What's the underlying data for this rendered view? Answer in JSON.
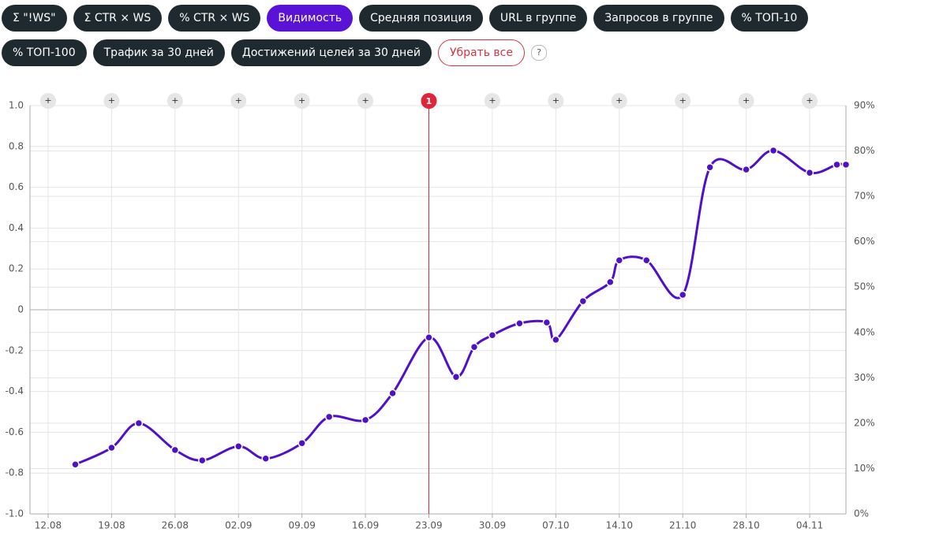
{
  "toolbar": {
    "buttons": [
      {
        "label": "Σ \"!WS\"",
        "active": false
      },
      {
        "label": "Σ CTR × WS",
        "active": false
      },
      {
        "label": "% CTR × WS",
        "active": false
      },
      {
        "label": "Видимость",
        "active": true
      },
      {
        "label": "Средняя позиция",
        "active": false
      },
      {
        "label": "URL в группе",
        "active": false
      },
      {
        "label": "Запросов в группе",
        "active": false
      },
      {
        "label": "% ТОП-10",
        "active": false
      },
      {
        "label": "% ТОП-100",
        "active": false
      },
      {
        "label": "Трафик за 30 дней",
        "active": false
      },
      {
        "label": "Достижений целей за 30 дней",
        "active": false
      }
    ],
    "clear_label": "Убрать все",
    "help_label": "?"
  },
  "chart_data": {
    "type": "line",
    "x": [
      "15.08",
      "19.08",
      "22.08",
      "26.08",
      "29.08",
      "02.09",
      "05.09",
      "09.09",
      "12.09",
      "16.09",
      "19.09",
      "23.09",
      "26.09",
      "28.09",
      "30.09",
      "03.10",
      "06.10",
      "07.10",
      "10.10",
      "13.10",
      "14.10",
      "17.10",
      "21.10",
      "24.10",
      "28.10",
      "31.10",
      "04.11",
      "07.11",
      "08.11"
    ],
    "series": [
      {
        "color": "#5010c8",
        "axis": "y2",
        "values": [
          10.9,
          14.6,
          20.0,
          14.1,
          11.8,
          14.9,
          12.2,
          15.6,
          21.4,
          20.7,
          26.6,
          38.9,
          30.2,
          36.8,
          39.4,
          42.0,
          42.2,
          38.4,
          46.9,
          51.1,
          55.9,
          55.9,
          48.3,
          76.4,
          75.9,
          80.1,
          75.2,
          77.0,
          77.0
        ]
      }
    ],
    "xlim": [
      "10.08",
      "08.11"
    ],
    "xticks": [
      "12.08",
      "19.08",
      "26.08",
      "02.09",
      "09.09",
      "16.09",
      "23.09",
      "30.09",
      "07.10",
      "14.10",
      "21.10",
      "28.10",
      "04.11"
    ],
    "ylim": [
      -1,
      1
    ],
    "yticks": [
      {
        "value": -1,
        "label": "-1.0"
      },
      -0.8,
      -0.6,
      -0.4,
      -0.2,
      0,
      0.2,
      0.4,
      0.6,
      0.8,
      {
        "value": 1,
        "label": "1.0"
      }
    ],
    "y2lim": [
      0,
      90
    ],
    "y2ticks": [
      {
        "value": 0,
        "label": "0%"
      },
      {
        "value": 10,
        "label": "10%"
      },
      {
        "value": 20,
        "label": "20%"
      },
      {
        "value": 30,
        "label": "30%"
      },
      {
        "value": 40,
        "label": "40%"
      },
      {
        "value": 50,
        "label": "50%"
      },
      {
        "value": 60,
        "label": "60%"
      },
      {
        "value": 70,
        "label": "70%"
      },
      {
        "value": 80,
        "label": "80%"
      },
      {
        "value": 90,
        "label": "90%"
      }
    ],
    "grid": true,
    "add_annotation_label": "+",
    "annotations": [
      {
        "x": "23.09",
        "label": "1",
        "color": "#e0253a"
      }
    ]
  }
}
